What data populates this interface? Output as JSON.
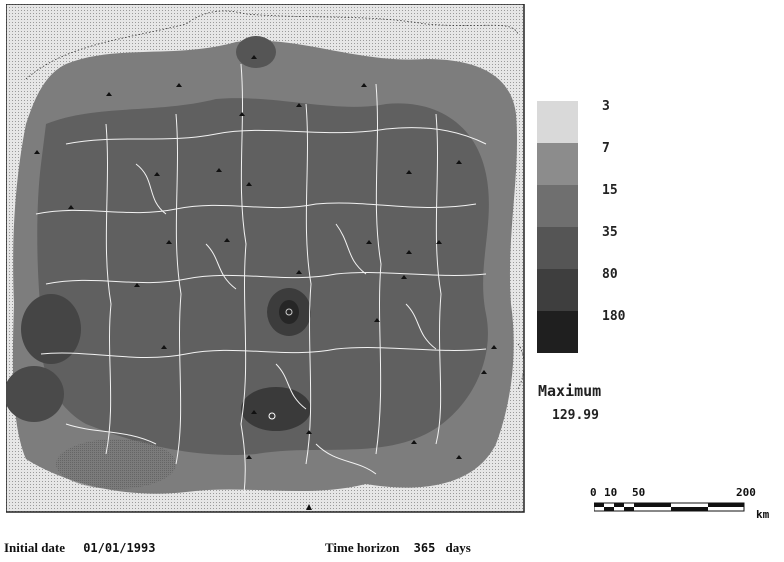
{
  "legend": {
    "classes": [
      {
        "label": "3",
        "color": "#d9d9d9"
      },
      {
        "label": "7",
        "color": "#8c8c8c"
      },
      {
        "label": "15",
        "color": "#6f6f6f"
      },
      {
        "label": "35",
        "color": "#555555"
      },
      {
        "label": "80",
        "color": "#3e3e3e"
      },
      {
        "label": "180",
        "color": "#1f1f1f"
      }
    ]
  },
  "maximum": {
    "label": "Maximum",
    "value": "129.99"
  },
  "scale": {
    "ticks": [
      "0",
      "10",
      "50",
      "200"
    ],
    "unit": "km"
  },
  "footer": {
    "initial_date_label": "Initial date",
    "initial_date_value": "01/01/1993",
    "time_horizon_label": "Time horizon",
    "time_horizon_value": "365",
    "time_horizon_unit": "days"
  }
}
